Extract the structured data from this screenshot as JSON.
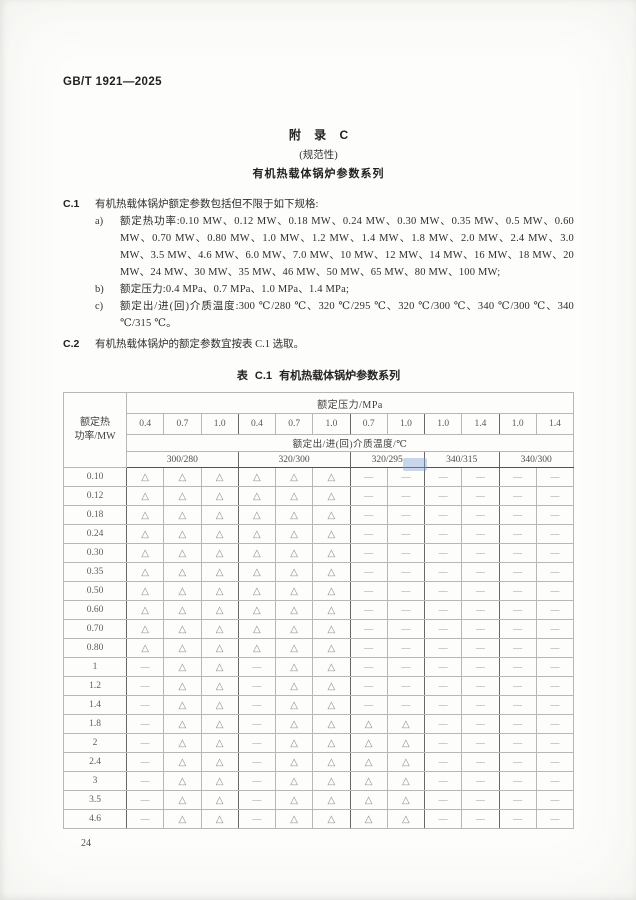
{
  "page": {
    "doc_code": "GB/T 1921—2025",
    "page_number": "24"
  },
  "appendix": {
    "title": "附 录 C",
    "subtitle": "(规范性)",
    "heading": "有机热载体锅炉参数系列"
  },
  "clauses": {
    "c1_label": "C.1",
    "c1_text": "有机热载体锅炉额定参数包括但不限于如下规格:",
    "item_a_label": "a)",
    "item_a_text": "额定热功率:0.10 MW、0.12 MW、0.18 MW、0.24 MW、0.30 MW、0.35 MW、0.5 MW、0.60 MW、0.70 MW、0.80 MW、1.0 MW、1.2 MW、1.4 MW、1.8 MW、2.0 MW、2.4 MW、3.0 MW、3.5 MW、4.6 MW、6.0 MW、7.0 MW、10 MW、12 MW、14 MW、16 MW、18 MW、20 MW、24 MW、30 MW、35 MW、46 MW、50 MW、65 MW、80 MW、100 MW;",
    "item_b_label": "b)",
    "item_b_text": "额定压力:0.4 MPa、0.7 MPa、1.0 MPa、1.4 MPa;",
    "item_c_label": "c)",
    "item_c_text": "额定出/进(回)介质温度:300 ℃/280 ℃、320 ℃/295 ℃、320 ℃/300 ℃、340 ℃/300 ℃、340 ℃/315 ℃。",
    "c2_label": "C.2",
    "c2_text": "有机热载体锅炉的额定参数宜按表 C.1 选取。"
  },
  "table": {
    "title": "表 C.1  有机热载体锅炉参数系列",
    "row_header_line1": "额定热",
    "row_header_line2": "功率/MW",
    "pressure_header": "额定压力/MPa",
    "pressures": [
      "0.4",
      "0.7",
      "1.0",
      "0.4",
      "0.7",
      "1.0",
      "0.7",
      "1.0",
      "1.0",
      "1.4",
      "1.0",
      "1.4"
    ],
    "temp_header": "额定出/进(回)介质温度/℃",
    "temp_groups": [
      {
        "label": "300/280",
        "span": 3
      },
      {
        "label": "320/300",
        "span": 3
      },
      {
        "label": "320/295",
        "span": 2
      },
      {
        "label": "340/315",
        "span": 2
      },
      {
        "label": "340/300",
        "span": 2
      }
    ],
    "symbols": {
      "selectable": "△",
      "not_available": "—"
    },
    "rows": [
      {
        "power": "0.10",
        "group_start": false,
        "marks": [
          "△",
          "△",
          "△",
          "△",
          "△",
          "△",
          "—",
          "—",
          "—",
          "—",
          "—",
          "—"
        ]
      },
      {
        "power": "0.12",
        "group_start": false,
        "marks": [
          "△",
          "△",
          "△",
          "△",
          "△",
          "△",
          "—",
          "—",
          "—",
          "—",
          "—",
          "—"
        ]
      },
      {
        "power": "0.18",
        "group_start": false,
        "marks": [
          "△",
          "△",
          "△",
          "△",
          "△",
          "△",
          "—",
          "—",
          "—",
          "—",
          "—",
          "—"
        ]
      },
      {
        "power": "0.24",
        "group_start": false,
        "marks": [
          "△",
          "△",
          "△",
          "△",
          "△",
          "△",
          "—",
          "—",
          "—",
          "—",
          "—",
          "—"
        ]
      },
      {
        "power": "0.30",
        "group_start": true,
        "marks": [
          "△",
          "△",
          "△",
          "△",
          "△",
          "△",
          "—",
          "—",
          "—",
          "—",
          "—",
          "—"
        ]
      },
      {
        "power": "0.35",
        "group_start": false,
        "marks": [
          "△",
          "△",
          "△",
          "△",
          "△",
          "△",
          "—",
          "—",
          "—",
          "—",
          "—",
          "—"
        ]
      },
      {
        "power": "0.50",
        "group_start": false,
        "marks": [
          "△",
          "△",
          "△",
          "△",
          "△",
          "△",
          "—",
          "—",
          "—",
          "—",
          "—",
          "—"
        ]
      },
      {
        "power": "0.60",
        "group_start": true,
        "marks": [
          "△",
          "△",
          "△",
          "△",
          "△",
          "△",
          "—",
          "—",
          "—",
          "—",
          "—",
          "—"
        ]
      },
      {
        "power": "0.70",
        "group_start": false,
        "marks": [
          "△",
          "△",
          "△",
          "△",
          "△",
          "△",
          "—",
          "—",
          "—",
          "—",
          "—",
          "—"
        ]
      },
      {
        "power": "0.80",
        "group_start": false,
        "marks": [
          "△",
          "△",
          "△",
          "△",
          "△",
          "△",
          "—",
          "—",
          "—",
          "—",
          "—",
          "—"
        ]
      },
      {
        "power": "1",
        "group_start": true,
        "marks": [
          "—",
          "△",
          "△",
          "—",
          "△",
          "△",
          "—",
          "—",
          "—",
          "—",
          "—",
          "—"
        ]
      },
      {
        "power": "1.2",
        "group_start": false,
        "marks": [
          "—",
          "△",
          "△",
          "—",
          "△",
          "△",
          "—",
          "—",
          "—",
          "—",
          "—",
          "—"
        ]
      },
      {
        "power": "1.4",
        "group_start": false,
        "marks": [
          "—",
          "△",
          "△",
          "—",
          "△",
          "△",
          "—",
          "—",
          "—",
          "—",
          "—",
          "—"
        ]
      },
      {
        "power": "1.8",
        "group_start": false,
        "marks": [
          "—",
          "△",
          "△",
          "—",
          "△",
          "△",
          "△",
          "△",
          "—",
          "—",
          "—",
          "—"
        ]
      },
      {
        "power": "2",
        "group_start": true,
        "marks": [
          "—",
          "△",
          "△",
          "—",
          "△",
          "△",
          "△",
          "△",
          "—",
          "—",
          "—",
          "—"
        ]
      },
      {
        "power": "2.4",
        "group_start": false,
        "marks": [
          "—",
          "△",
          "△",
          "—",
          "△",
          "△",
          "△",
          "△",
          "—",
          "—",
          "—",
          "—"
        ]
      },
      {
        "power": "3",
        "group_start": false,
        "marks": [
          "—",
          "△",
          "△",
          "—",
          "△",
          "△",
          "△",
          "△",
          "—",
          "—",
          "—",
          "—"
        ]
      },
      {
        "power": "3.5",
        "group_start": true,
        "marks": [
          "—",
          "△",
          "△",
          "—",
          "△",
          "△",
          "△",
          "△",
          "—",
          "—",
          "—",
          "—"
        ]
      },
      {
        "power": "4.6",
        "group_start": false,
        "marks": [
          "—",
          "△",
          "△",
          "—",
          "△",
          "△",
          "△",
          "△",
          "—",
          "—",
          "—",
          "—"
        ]
      }
    ]
  }
}
